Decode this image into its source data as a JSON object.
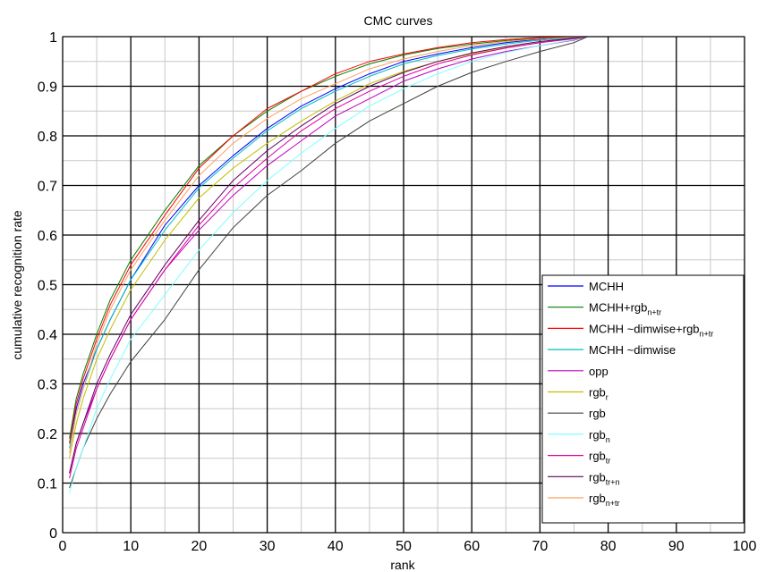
{
  "chart_data": {
    "type": "line",
    "title": "CMC curves",
    "xlabel": "rank",
    "ylabel": "cumulative recognition rate",
    "xlim": [
      0,
      100
    ],
    "ylim": [
      0,
      1
    ],
    "xticks": [
      0,
      10,
      20,
      30,
      40,
      50,
      60,
      70,
      80,
      90,
      100
    ],
    "yticks": [
      0,
      0.1,
      0.2,
      0.3,
      0.4,
      0.5,
      0.6,
      0.7,
      0.8,
      0.9,
      1
    ],
    "ytick_labels": [
      "0",
      "0.1",
      "0.2",
      "0.3",
      "0.4",
      "0.5",
      "0.6",
      "0.7",
      "0.8",
      "0.9",
      "1"
    ],
    "grid": "major and minor",
    "legend_position": "bottom-right",
    "x": [
      1,
      2,
      3,
      5,
      7,
      10,
      15,
      20,
      25,
      30,
      35,
      40,
      45,
      50,
      55,
      60,
      65,
      70,
      75,
      77
    ],
    "series": [
      {
        "name": "MCHH",
        "sub": "",
        "color": "#0000ff",
        "values": [
          0.18,
          0.25,
          0.3,
          0.37,
          0.43,
          0.51,
          0.62,
          0.7,
          0.76,
          0.815,
          0.86,
          0.895,
          0.925,
          0.95,
          0.965,
          0.978,
          0.988,
          0.995,
          0.999,
          1.0
        ]
      },
      {
        "name": "MCHH+rgb",
        "sub": "n+tr",
        "color": "#007f00",
        "values": [
          0.19,
          0.27,
          0.32,
          0.4,
          0.47,
          0.55,
          0.65,
          0.74,
          0.8,
          0.85,
          0.89,
          0.92,
          0.945,
          0.963,
          0.976,
          0.985,
          0.992,
          0.997,
          0.999,
          1.0
        ]
      },
      {
        "name": "MCHH ~dimwise+rgb",
        "sub": "n+tr",
        "color": "#ff0000",
        "values": [
          0.18,
          0.26,
          0.31,
          0.39,
          0.46,
          0.54,
          0.64,
          0.735,
          0.8,
          0.855,
          0.89,
          0.925,
          0.95,
          0.965,
          0.978,
          0.988,
          0.994,
          0.998,
          0.999,
          1.0
        ]
      },
      {
        "name": "MCHH ~dimwise",
        "sub": "",
        "color": "#00bfbf",
        "values": [
          0.17,
          0.24,
          0.29,
          0.37,
          0.43,
          0.51,
          0.61,
          0.695,
          0.755,
          0.81,
          0.855,
          0.89,
          0.92,
          0.945,
          0.962,
          0.975,
          0.985,
          0.993,
          0.998,
          1.0
        ]
      },
      {
        "name": "opp",
        "sub": "",
        "color": "#bf00bf",
        "values": [
          0.12,
          0.18,
          0.22,
          0.29,
          0.35,
          0.43,
          0.53,
          0.61,
          0.68,
          0.74,
          0.79,
          0.84,
          0.875,
          0.91,
          0.935,
          0.955,
          0.97,
          0.982,
          0.993,
          1.0
        ]
      },
      {
        "name": "rgb",
        "sub": "r",
        "color": "#bfbf00",
        "values": [
          0.15,
          0.22,
          0.27,
          0.35,
          0.41,
          0.49,
          0.59,
          0.675,
          0.735,
          0.785,
          0.83,
          0.87,
          0.905,
          0.93,
          0.95,
          0.965,
          0.978,
          0.988,
          0.996,
          1.0
        ]
      },
      {
        "name": "rgb",
        "sub": "",
        "color": "#3f3f3f",
        "values": [
          0.09,
          0.13,
          0.17,
          0.23,
          0.28,
          0.345,
          0.43,
          0.53,
          0.615,
          0.68,
          0.73,
          0.785,
          0.83,
          0.865,
          0.9,
          0.928,
          0.95,
          0.97,
          0.988,
          1.0
        ]
      },
      {
        "name": "rgb",
        "sub": "n",
        "color": "#7fffff",
        "values": [
          0.08,
          0.13,
          0.17,
          0.25,
          0.31,
          0.39,
          0.48,
          0.57,
          0.645,
          0.71,
          0.765,
          0.815,
          0.86,
          0.895,
          0.925,
          0.95,
          0.968,
          0.982,
          0.994,
          1.0
        ]
      },
      {
        "name": "rgb",
        "sub": "tr",
        "color": "#df00a0",
        "values": [
          0.11,
          0.17,
          0.21,
          0.29,
          0.35,
          0.43,
          0.53,
          0.62,
          0.695,
          0.755,
          0.81,
          0.855,
          0.89,
          0.92,
          0.945,
          0.963,
          0.977,
          0.988,
          0.996,
          1.0
        ]
      },
      {
        "name": "rgb",
        "sub": "tr+n",
        "color": "#5f005f",
        "values": [
          0.12,
          0.18,
          0.22,
          0.3,
          0.36,
          0.44,
          0.54,
          0.63,
          0.71,
          0.77,
          0.82,
          0.865,
          0.9,
          0.928,
          0.95,
          0.967,
          0.98,
          0.99,
          0.997,
          1.0
        ]
      },
      {
        "name": "rgb",
        "sub": "n+tr",
        "color": "#ff9f5f",
        "values": [
          0.16,
          0.24,
          0.29,
          0.38,
          0.45,
          0.53,
          0.63,
          0.72,
          0.785,
          0.835,
          0.875,
          0.905,
          0.935,
          0.955,
          0.97,
          0.982,
          0.99,
          0.996,
          0.999,
          1.0
        ]
      }
    ]
  }
}
